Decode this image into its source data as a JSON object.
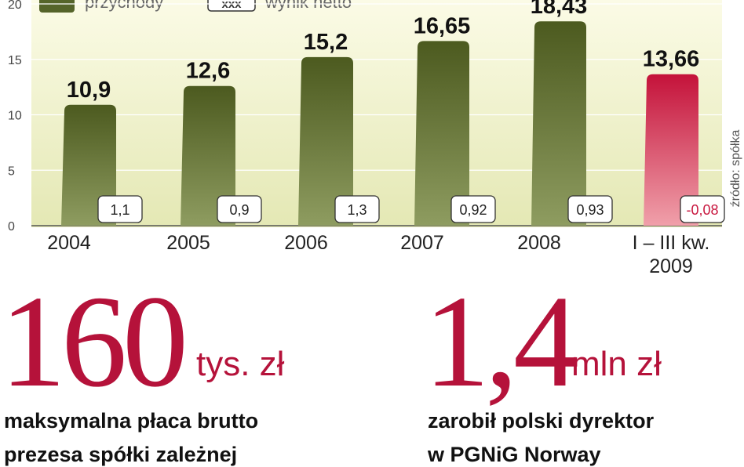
{
  "chart_data": {
    "type": "bar",
    "categories": [
      "2004",
      "2005",
      "2006",
      "2007",
      "2008",
      "I – III kw. 2009"
    ],
    "series": [
      {
        "name": "przychody",
        "color": "#55642a",
        "colors": [
          "#55642a",
          "#55642a",
          "#55642a",
          "#55642a",
          "#55642a",
          "#c8173f"
        ],
        "values": [
          10.9,
          12.6,
          15.2,
          16.65,
          18.43,
          13.66
        ],
        "value_labels": [
          "10,9",
          "12,6",
          "15,2",
          "16,65",
          "18,43",
          "13,66"
        ]
      },
      {
        "name": "wynik netto",
        "color": "#ffffff",
        "label_colors": [
          "#222222",
          "#222222",
          "#222222",
          "#222222",
          "#222222",
          "#c8173f"
        ],
        "values": [
          1.1,
          0.9,
          1.3,
          0.92,
          0.93,
          -0.08
        ],
        "value_labels": [
          "1,1",
          "0,9",
          "1,3",
          "0,92",
          "0,93",
          "-0,08"
        ]
      }
    ],
    "legend_symbol": "xxx",
    "ylim": [
      0,
      20
    ],
    "yticks": [
      0,
      5,
      10,
      15,
      20
    ],
    "grid": true,
    "source": "źródło: spółka"
  },
  "highlights": [
    {
      "value": "160",
      "unit": "tys. zł",
      "description": [
        "maksymalna płaca brutto",
        "prezesa spółki zależnej"
      ]
    },
    {
      "value": "1,4",
      "unit": "mln zł",
      "description": [
        "zarobił polski dyrektor",
        "w PGNiG Norway"
      ]
    }
  ]
}
